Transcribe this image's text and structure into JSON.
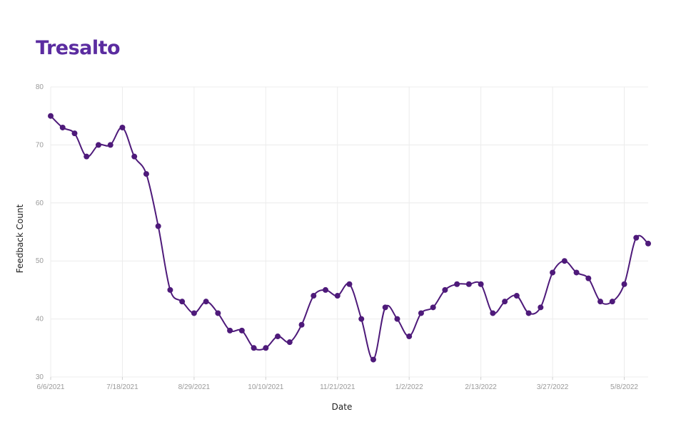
{
  "title": "Tresalto",
  "colors": {
    "accent": "#5b2ca0",
    "line": "#4e1a7a",
    "grid": "#ececec"
  },
  "chart_data": {
    "type": "line",
    "title": "Tresalto",
    "xlabel": "Date",
    "ylabel": "Feedback Count",
    "ylim": [
      30,
      80
    ],
    "yticks": [
      30,
      40,
      50,
      60,
      70,
      80
    ],
    "xticks": [
      "6/6/2021",
      "7/18/2021",
      "8/29/2021",
      "10/10/2021",
      "11/21/2021",
      "1/2/2022",
      "2/13/2022",
      "3/27/2022",
      "5/8/2022"
    ],
    "grid": true,
    "legend": "none",
    "interval": "weekly",
    "x": [
      "6/6/2021",
      "6/13/2021",
      "6/20/2021",
      "6/27/2021",
      "7/4/2021",
      "7/11/2021",
      "7/18/2021",
      "7/25/2021",
      "8/1/2021",
      "8/8/2021",
      "8/15/2021",
      "8/22/2021",
      "8/29/2021",
      "9/5/2021",
      "9/12/2021",
      "9/19/2021",
      "9/26/2021",
      "10/3/2021",
      "10/10/2021",
      "10/17/2021",
      "10/24/2021",
      "10/31/2021",
      "11/7/2021",
      "11/14/2021",
      "11/21/2021",
      "11/28/2021",
      "12/5/2021",
      "12/12/2021",
      "12/19/2021",
      "12/26/2021",
      "1/2/2022",
      "1/9/2022",
      "1/16/2022",
      "1/23/2022",
      "1/30/2022",
      "2/6/2022",
      "2/13/2022",
      "2/20/2022",
      "2/27/2022",
      "3/6/2022",
      "3/13/2022",
      "3/20/2022",
      "3/27/2022",
      "4/3/2022",
      "4/10/2022",
      "4/17/2022",
      "4/24/2022",
      "5/1/2022",
      "5/8/2022",
      "5/15/2022",
      "5/22/2022"
    ],
    "series": [
      {
        "values": [
          75,
          73,
          72,
          68,
          70,
          70,
          73,
          68,
          65,
          56,
          45,
          43,
          41,
          43,
          41,
          38,
          38,
          35,
          35,
          37,
          36,
          39,
          44,
          45,
          44,
          46,
          40,
          33,
          42,
          40,
          37,
          41,
          42,
          45,
          46,
          46,
          46,
          41,
          43,
          44,
          41,
          42,
          48,
          50,
          48,
          47,
          43,
          43,
          46,
          54,
          53
        ]
      }
    ]
  }
}
